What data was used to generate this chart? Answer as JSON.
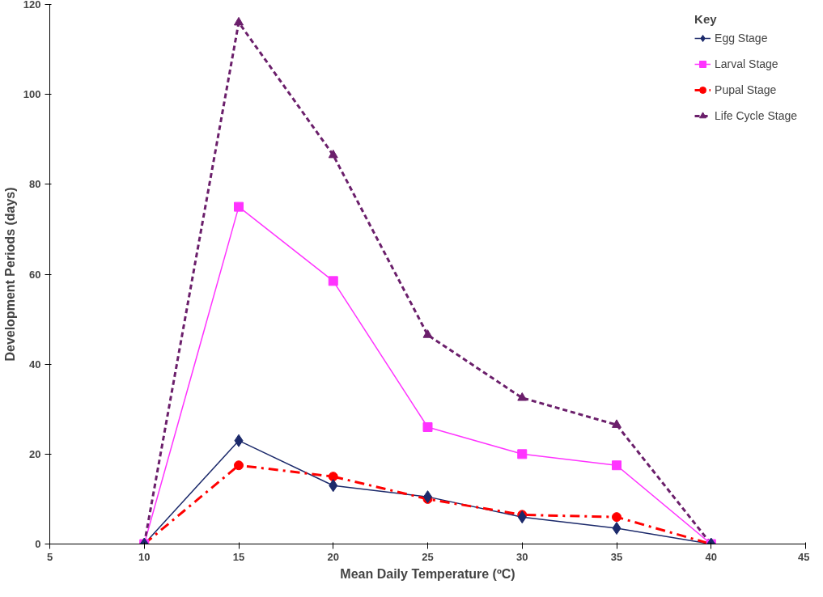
{
  "chart_data": {
    "type": "line",
    "xlabel": "Mean Daily Temperature (ºC)",
    "ylabel": "Development Periods (days)",
    "legend_title": "Key",
    "x": [
      10,
      15,
      20,
      25,
      30,
      35,
      40
    ],
    "series": [
      {
        "name": "Egg Stage",
        "color": "#1c2a6b",
        "marker": "diamond",
        "line_style": "solid",
        "values": [
          0,
          23,
          13,
          10.5,
          6,
          3.5,
          0
        ]
      },
      {
        "name": "Larval Stage",
        "color": "#ff33ff",
        "marker": "square",
        "line_style": "solid",
        "values": [
          0,
          75,
          58.5,
          26,
          20,
          17.5,
          0
        ]
      },
      {
        "name": "Pupal Stage",
        "color": "#ff0000",
        "marker": "circle",
        "line_style": "dashed",
        "values": [
          0,
          17.5,
          15,
          10,
          6.5,
          6,
          0
        ]
      },
      {
        "name": "Life Cycle Stage",
        "color": "#6b1f6b",
        "marker": "triangle",
        "line_style": "dotted",
        "values": [
          0,
          116,
          86.5,
          46.5,
          32.5,
          26.5,
          0
        ]
      }
    ],
    "xlim": [
      5,
      45
    ],
    "ylim": [
      0,
      120
    ],
    "xticks": [
      5,
      10,
      15,
      20,
      25,
      30,
      35,
      40,
      45
    ],
    "yticks": [
      0,
      20,
      40,
      60,
      80,
      100,
      120
    ],
    "grid": false,
    "legend": "top right"
  }
}
